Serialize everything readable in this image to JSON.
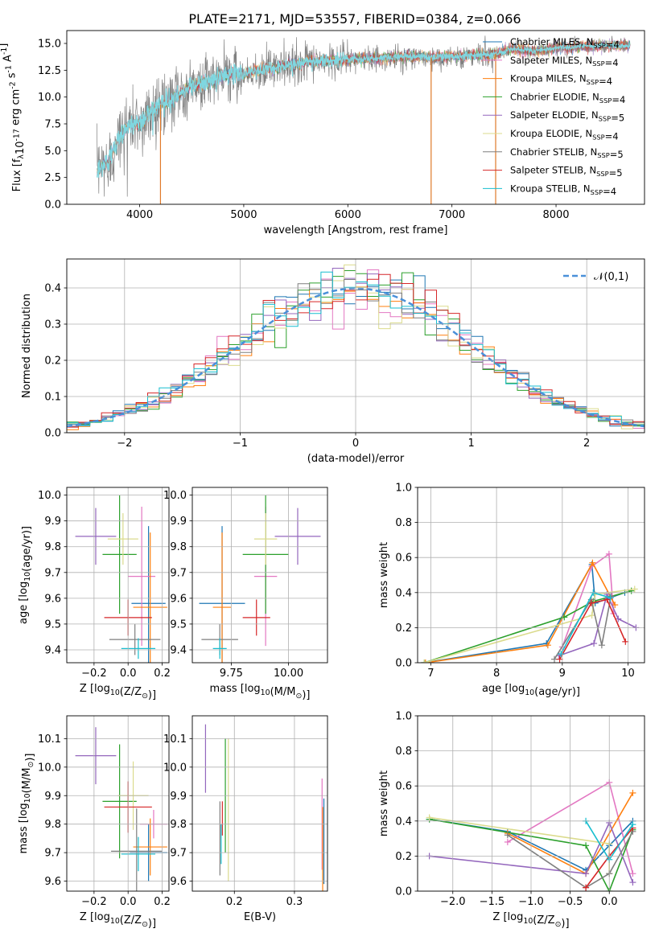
{
  "title": "PLATE=2171, MJD=53557, FIBERID=0384, z=0.066",
  "models": [
    {
      "label": "Chabrier MILES, N$_{SSP}$=4",
      "color": "#1f77b4"
    },
    {
      "label": "Salpeter MILES, N$_{SSP}$=4",
      "color": "#e377c2"
    },
    {
      "label": "Kroupa MILES, N$_{SSP}$=4",
      "color": "#ff7f0e"
    },
    {
      "label": "Chabrier ELODIE, N$_{SSP}$=4",
      "color": "#2ca02c"
    },
    {
      "label": "Salpeter ELODIE, N$_{SSP}$=5",
      "color": "#9467bd"
    },
    {
      "label": "Kroupa ELODIE, N$_{SSP}$=4",
      "color": "#dbdb8d"
    },
    {
      "label": "Chabrier STELIB, N$_{SSP}$=5",
      "color": "#7f7f7f"
    },
    {
      "label": "Salpeter STELIB, N$_{SSP}$=5",
      "color": "#d62728"
    },
    {
      "label": "Kroupa STELIB, N$_{SSP}$=4",
      "color": "#17becf"
    }
  ],
  "chart_data": [
    {
      "type": "line",
      "panel": "spectrum",
      "xlabel": "wavelength [Angstrom, rest frame]",
      "ylabel": "Flux [f$_\\lambda$10$^{-17}$ erg cm$^{-2}$ s$^{-1}$ A$^{-1}$]",
      "xlim": [
        3300,
        8850
      ],
      "ylim": [
        0,
        16.2
      ],
      "xticks": [
        4000,
        5000,
        6000,
        7000,
        8000
      ],
      "yticks": [
        0.0,
        2.5,
        5.0,
        7.5,
        10.0,
        12.5,
        15.0
      ],
      "data_color": "#808080",
      "model_color": "#7fd7e0",
      "data_anchors": [
        [
          3590,
          3.1
        ],
        [
          3700,
          4.0
        ],
        [
          3800,
          6.2
        ],
        [
          3900,
          7.4
        ],
        [
          4000,
          7.6
        ],
        [
          4100,
          8.6
        ],
        [
          4200,
          9.3
        ],
        [
          4300,
          9.6
        ],
        [
          4400,
          10.4
        ],
        [
          4500,
          11.1
        ],
        [
          4600,
          11.3
        ],
        [
          4700,
          11.5
        ],
        [
          4800,
          12.0
        ],
        [
          4900,
          12.2
        ],
        [
          5000,
          12.1
        ],
        [
          5100,
          12.4
        ],
        [
          5200,
          12.6
        ],
        [
          5300,
          12.7
        ],
        [
          5400,
          13.0
        ],
        [
          5500,
          13.1
        ],
        [
          5600,
          13.2
        ],
        [
          5800,
          13.4
        ],
        [
          6000,
          13.5
        ],
        [
          6200,
          13.6
        ],
        [
          6400,
          13.7
        ],
        [
          6600,
          13.8
        ],
        [
          6800,
          13.7
        ],
        [
          7000,
          13.8
        ],
        [
          7200,
          13.9
        ],
        [
          7400,
          14.0
        ],
        [
          7600,
          14.5
        ],
        [
          7800,
          14.3
        ],
        [
          8000,
          14.6
        ],
        [
          8200,
          14.7
        ],
        [
          8400,
          14.8
        ],
        [
          8600,
          14.8
        ],
        [
          8710,
          14.8
        ]
      ],
      "dips": [
        4200,
        6800,
        7420
      ]
    },
    {
      "type": "histogram",
      "panel": "residuals",
      "xlabel": "(data-model)/error",
      "ylabel": "Normed distribution",
      "xlim": [
        -2.5,
        2.5
      ],
      "ylim": [
        0,
        0.48
      ],
      "xticks": [
        -2,
        -1,
        0,
        1,
        2
      ],
      "yticks": [
        0.0,
        0.1,
        0.2,
        0.3,
        0.4
      ],
      "bin_width": 0.1,
      "reference_label": "$\\mathcal{N}(0,1)$",
      "reference_color": "#4a90d9",
      "grid": true,
      "legend": "top-right"
    },
    {
      "type": "errorbar",
      "panel": "age-vs-Z",
      "xlabel": "Z [log$_{10}$(Z/Z$_\\odot$)]",
      "ylabel": "age  [log$_{10}$(age/yr)]",
      "xlim": [
        -0.36,
        0.24
      ],
      "ylim": [
        9.35,
        10.03
      ],
      "xticks": [
        -0.2,
        0.0,
        0.2
      ],
      "yticks": [
        9.4,
        9.5,
        9.6,
        9.7,
        9.8,
        9.9,
        10.0
      ],
      "points": [
        {
          "x": 0.12,
          "xerr": 0.1,
          "y": 9.58,
          "yerr": 0.3
        },
        {
          "x": 0.08,
          "xerr": 0.08,
          "y": 9.685,
          "yerr": 0.27
        },
        {
          "x": 0.13,
          "xerr": 0.1,
          "y": 9.565,
          "yerr": 0.29
        },
        {
          "x": -0.05,
          "xerr": 0.1,
          "y": 9.77,
          "yerr": 0.23
        },
        {
          "x": -0.19,
          "xerr": 0.12,
          "y": 9.84,
          "yerr": 0.11
        },
        {
          "x": -0.03,
          "xerr": 0.09,
          "y": 9.83,
          "yerr": 0.1
        },
        {
          "x": 0.04,
          "xerr": 0.15,
          "y": 9.44,
          "yerr": 0.06
        },
        {
          "x": 0.0,
          "xerr": 0.14,
          "y": 9.525,
          "yerr": 0.07
        },
        {
          "x": 0.06,
          "xerr": 0.1,
          "y": 9.405,
          "yerr": 0.04
        }
      ]
    },
    {
      "type": "errorbar",
      "panel": "age-vs-mass",
      "xlabel": "mass [log$_{10}$(M/M$_\\odot$)]",
      "xlim": [
        9.58,
        10.17
      ],
      "ylim": [
        9.35,
        10.03
      ],
      "xticks": [
        9.75,
        10.0
      ],
      "yticks": [
        9.4,
        9.5,
        9.6,
        9.7,
        9.8,
        9.9,
        10.0
      ],
      "points": [
        {
          "x": 9.71,
          "xerr": 0.1,
          "y": 9.58,
          "yerr": 0.3
        },
        {
          "x": 9.9,
          "xerr": 0.05,
          "y": 9.685,
          "yerr": 0.27
        },
        {
          "x": 9.71,
          "xerr": 0.04,
          "y": 9.565,
          "yerr": 0.29
        },
        {
          "x": 9.9,
          "xerr": 0.1,
          "y": 9.77,
          "yerr": 0.23
        },
        {
          "x": 10.04,
          "xerr": 0.1,
          "y": 9.84,
          "yerr": 0.11
        },
        {
          "x": 9.9,
          "xerr": 0.05,
          "y": 9.83,
          "yerr": 0.1
        },
        {
          "x": 9.7,
          "xerr": 0.08,
          "y": 9.44,
          "yerr": 0.06
        },
        {
          "x": 9.86,
          "xerr": 0.06,
          "y": 9.525,
          "yerr": 0.07
        },
        {
          "x": 9.7,
          "xerr": 0.03,
          "y": 9.405,
          "yerr": 0.04
        }
      ]
    },
    {
      "type": "line",
      "panel": "weight-vs-age",
      "xlabel": "age  [log$_{10}$(age/yr)]",
      "ylabel": "mass weight",
      "xlim": [
        6.8,
        10.25
      ],
      "ylim": [
        0,
        1
      ],
      "xticks": [
        7,
        8,
        9,
        10
      ],
      "yticks": [
        0.0,
        0.2,
        0.4,
        0.6,
        0.8,
        1.0
      ],
      "series": [
        {
          "points": [
            [
              6.9,
              0.0
            ],
            [
              8.76,
              0.11
            ],
            [
              9.45,
              0.56
            ],
            [
              9.5,
              0.34
            ],
            [
              9.95,
              0.4
            ]
          ]
        },
        {
          "points": [
            [
              9.0,
              0.09
            ],
            [
              9.45,
              0.55
            ],
            [
              9.71,
              0.62
            ],
            [
              9.78,
              0.28
            ]
          ]
        },
        {
          "points": [
            [
              6.92,
              0.0
            ],
            [
              8.78,
              0.1
            ],
            [
              9.46,
              0.57
            ],
            [
              9.8,
              0.33
            ]
          ]
        },
        {
          "points": [
            [
              6.9,
              0.0
            ],
            [
              9.03,
              0.26
            ],
            [
              9.47,
              0.35
            ],
            [
              10.05,
              0.41
            ]
          ]
        },
        {
          "points": [
            [
              8.95,
              0.04
            ],
            [
              9.48,
              0.11
            ],
            [
              9.68,
              0.39
            ],
            [
              9.85,
              0.25
            ],
            [
              10.12,
              0.2
            ]
          ]
        },
        {
          "points": [
            [
              6.9,
              0.0
            ],
            [
              9.45,
              0.27
            ],
            [
              9.5,
              0.39
            ],
            [
              10.1,
              0.42
            ]
          ]
        },
        {
          "points": [
            [
              8.88,
              0.02
            ],
            [
              9.44,
              0.36
            ],
            [
              9.6,
              0.1
            ],
            [
              9.74,
              0.38
            ]
          ]
        },
        {
          "points": [
            [
              8.96,
              0.02
            ],
            [
              9.44,
              0.34
            ],
            [
              9.68,
              0.36
            ],
            [
              9.96,
              0.12
            ]
          ]
        },
        {
          "points": [
            [
              8.98,
              0.05
            ],
            [
              9.47,
              0.4
            ],
            [
              9.73,
              0.37
            ]
          ]
        }
      ]
    },
    {
      "type": "errorbar",
      "panel": "mass-vs-Z",
      "xlabel": "Z [log$_{10}$(Z/Z$_\\odot$)]",
      "ylabel": "mass [log$_{10}$(M/M$_\\odot$)]",
      "xlim": [
        -0.36,
        0.24
      ],
      "ylim": [
        9.565,
        10.18
      ],
      "xticks": [
        -0.2,
        0.0,
        0.2
      ],
      "yticks": [
        9.6,
        9.7,
        9.8,
        9.9,
        10.0,
        10.1
      ],
      "points": [
        {
          "x": 0.12,
          "xerr": 0.11,
          "y": 9.7,
          "yerr": 0.1
        },
        {
          "x": 0.15,
          "xerr": 0.08,
          "y": 9.8,
          "yerr": 0.05
        },
        {
          "x": 0.13,
          "xerr": 0.1,
          "y": 9.72,
          "yerr": 0.1
        },
        {
          "x": -0.05,
          "xerr": 0.1,
          "y": 9.88,
          "yerr": 0.2
        },
        {
          "x": -0.19,
          "xerr": 0.12,
          "y": 10.04,
          "yerr": 0.1
        },
        {
          "x": 0.03,
          "xerr": 0.09,
          "y": 9.9,
          "yerr": 0.12
        },
        {
          "x": 0.05,
          "xerr": 0.15,
          "y": 9.705,
          "yerr": 0.15
        },
        {
          "x": 0.0,
          "xerr": 0.14,
          "y": 9.86,
          "yerr": 0.09
        },
        {
          "x": 0.06,
          "xerr": 0.1,
          "y": 9.695,
          "yerr": 0.06
        }
      ]
    },
    {
      "type": "errorbar",
      "panel": "mass-vs-EBV",
      "xlabel": "E(B-V)",
      "xlim": [
        0.13,
        0.355
      ],
      "ylim": [
        9.565,
        10.18
      ],
      "xticks": [
        0.2,
        0.3
      ],
      "yticks": [
        9.6,
        9.7,
        9.8,
        9.9,
        10.0,
        10.1
      ],
      "points": [
        {
          "x": 0.349,
          "xerr": 0.0,
          "y": 9.74,
          "yerr": 0.15
        },
        {
          "x": 0.346,
          "xerr": 0.0,
          "y": 9.8,
          "yerr": 0.16
        },
        {
          "x": 0.347,
          "xerr": 0.0,
          "y": 9.7,
          "yerr": 0.16
        },
        {
          "x": 0.185,
          "xerr": 0.0,
          "y": 9.9,
          "yerr": 0.2
        },
        {
          "x": 0.152,
          "xerr": 0.0,
          "y": 10.03,
          "yerr": 0.12
        },
        {
          "x": 0.19,
          "xerr": 0.0,
          "y": 9.85,
          "yerr": 0.25
        },
        {
          "x": 0.176,
          "xerr": 0.0,
          "y": 9.75,
          "yerr": 0.13
        },
        {
          "x": 0.18,
          "xerr": 0.0,
          "y": 9.82,
          "yerr": 0.06
        },
        {
          "x": 0.178,
          "xerr": 0.0,
          "y": 9.73,
          "yerr": 0.07
        }
      ]
    },
    {
      "type": "line",
      "panel": "weight-vs-Z",
      "xlabel": "Z [log$_{10}$(Z/Z$_\\odot$)]",
      "ylabel": "mass weight",
      "xlim": [
        -2.45,
        0.45
      ],
      "ylim": [
        0,
        1
      ],
      "xticks": [
        -2.0,
        -1.5,
        -1.0,
        -0.5,
        0.0
      ],
      "yticks": [
        0.0,
        0.2,
        0.4,
        0.6,
        0.8,
        1.0
      ],
      "series": [
        {
          "points": [
            [
              -2.3,
              0.41
            ],
            [
              -1.3,
              0.34
            ],
            [
              -0.3,
              0.12
            ],
            [
              0.0,
              0.26
            ],
            [
              0.3,
              0.4
            ]
          ]
        },
        {
          "points": [
            [
              -1.3,
              0.28
            ],
            [
              0.0,
              0.62
            ],
            [
              0.3,
              0.1
            ]
          ]
        },
        {
          "points": [
            [
              -1.3,
              0.33
            ],
            [
              -0.3,
              0.1
            ],
            [
              0.3,
              0.56
            ]
          ]
        },
        {
          "points": [
            [
              -2.3,
              0.41
            ],
            [
              -0.3,
              0.26
            ],
            [
              0.0,
              0.0
            ],
            [
              0.3,
              0.35
            ]
          ]
        },
        {
          "points": [
            [
              -2.3,
              0.2
            ],
            [
              -0.3,
              0.1
            ],
            [
              0.0,
              0.39
            ],
            [
              0.3,
              0.05
            ]
          ]
        },
        {
          "points": [
            [
              -2.3,
              0.42
            ],
            [
              0.0,
              0.27
            ],
            [
              0.0,
              0.1
            ]
          ]
        },
        {
          "points": [
            [
              -1.3,
              0.32
            ],
            [
              -0.3,
              0.02
            ],
            [
              0.0,
              0.1
            ],
            [
              0.3,
              0.34
            ]
          ]
        },
        {
          "points": [
            [
              -0.3,
              0.02
            ],
            [
              0.0,
              0.2
            ],
            [
              0.3,
              0.36
            ]
          ]
        },
        {
          "points": [
            [
              -0.3,
              0.4
            ],
            [
              0.0,
              0.18
            ],
            [
              0.3,
              0.38
            ]
          ]
        }
      ]
    }
  ]
}
